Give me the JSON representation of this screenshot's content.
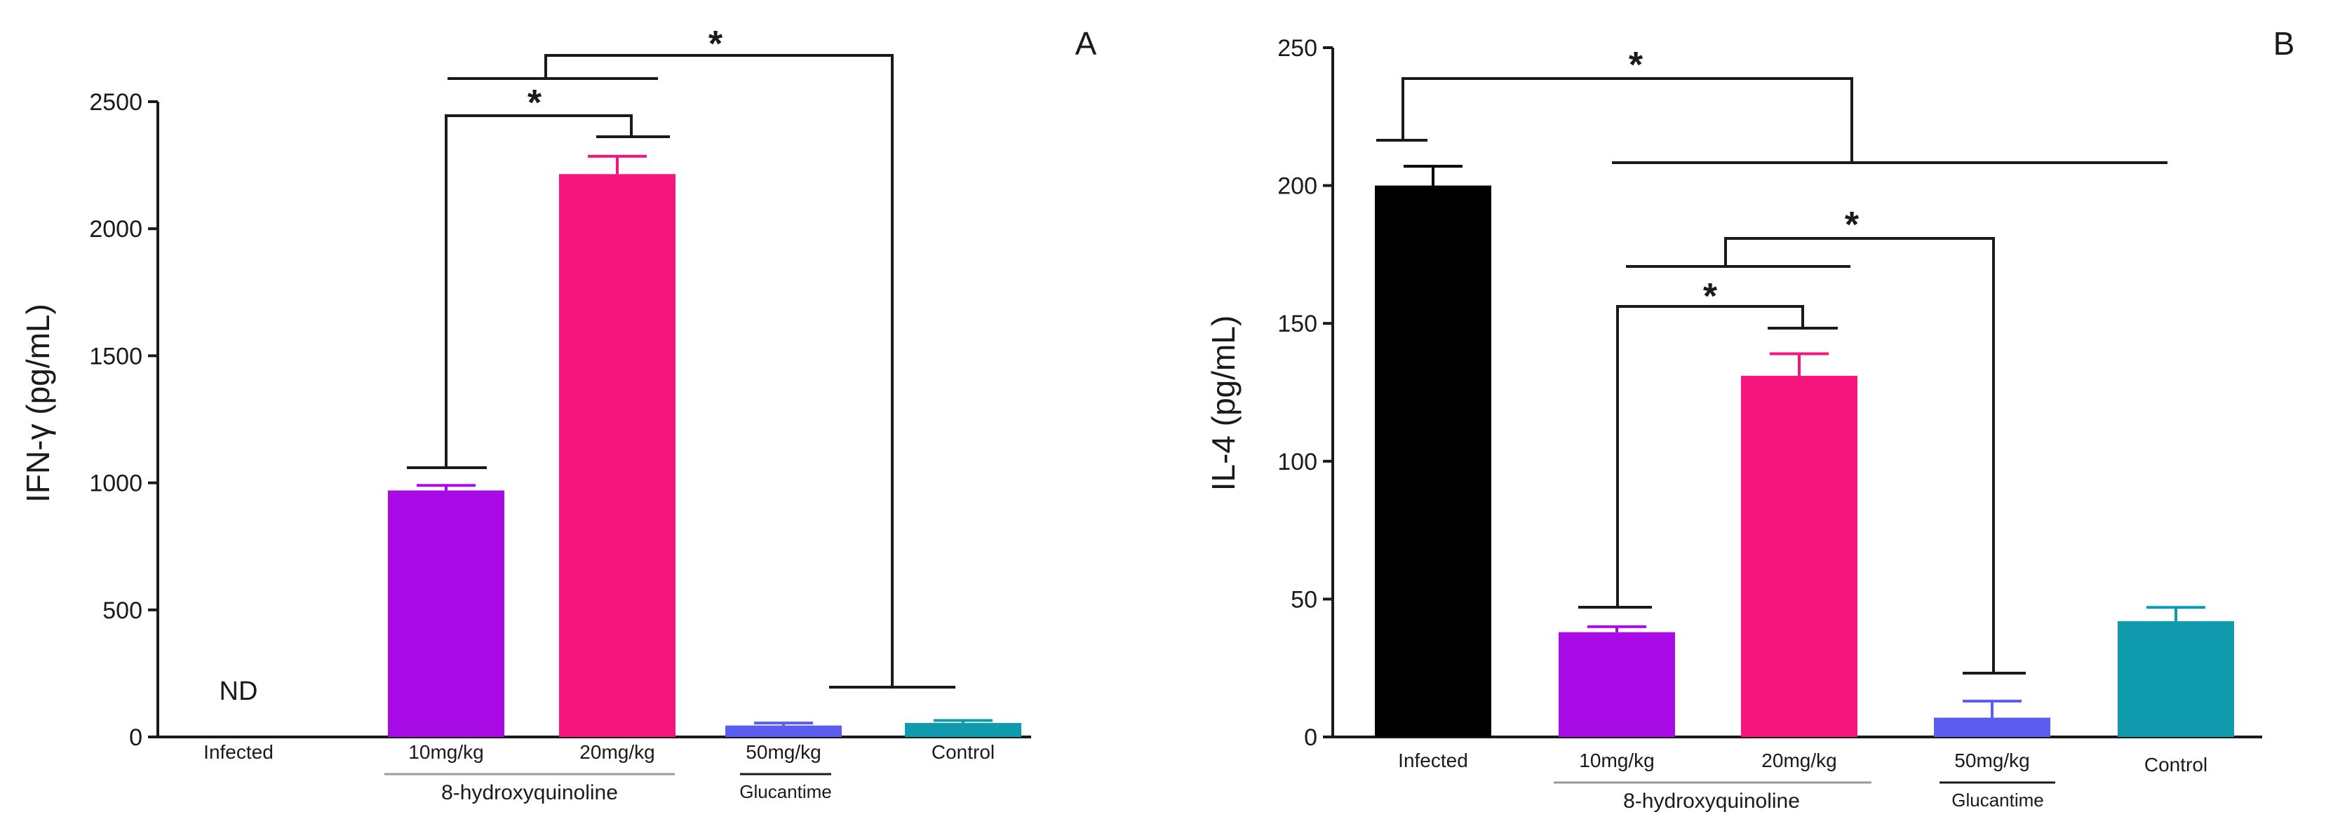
{
  "colors": {
    "infected": "#000000",
    "dose10": "#a80be6",
    "dose20": "#f5157d",
    "glucantime": "#5b5cf0",
    "control": "#0f9aae",
    "axis": "#1a1a1a",
    "group_underline": "#9a9a9a"
  },
  "chart_data": [
    {
      "type": "bar",
      "panel": "A",
      "ylabel": "IFN-γ (pg/mL)",
      "ylim": [
        0,
        2500
      ],
      "yticks": [
        "0",
        "500",
        "1000",
        "1500",
        "2000",
        "2500"
      ],
      "ytick_values": [
        0,
        500,
        1000,
        1500,
        2000,
        2500
      ],
      "categories": [
        "Infected",
        "10mg/kg",
        "20mg/kg",
        "50mg/kg",
        "Control"
      ],
      "values": [
        0,
        970,
        2215,
        45,
        55
      ],
      "errors": [
        0,
        20,
        70,
        10,
        10
      ],
      "nd_label": "ND",
      "group_labels": {
        "hq": "8-hydroxyquinoline",
        "glu": "Glucantime"
      },
      "significance": [
        {
          "from": "10mg/kg",
          "to": "20mg/kg",
          "label": "*"
        },
        {
          "from": "8-hydroxyquinoline",
          "to": "Glucantime/Control",
          "label": "*"
        }
      ]
    },
    {
      "type": "bar",
      "panel": "B",
      "ylabel": "IL-4 (pg/mL)",
      "ylim": [
        0,
        250
      ],
      "yticks": [
        "0",
        "50",
        "100",
        "150",
        "200",
        "250"
      ],
      "ytick_values": [
        0,
        50,
        100,
        150,
        200,
        250
      ],
      "categories": [
        "Infected",
        "10mg/kg",
        "20mg/kg",
        "50mg/kg",
        "Control"
      ],
      "values": [
        200,
        38,
        131,
        7,
        42
      ],
      "errors": [
        7,
        2,
        8,
        6,
        5
      ],
      "group_labels": {
        "hq": "8-hydroxyquinoline",
        "glu": "Glucantime"
      },
      "significance": [
        {
          "from": "Infected",
          "to": "treatments/Control",
          "label": "*"
        },
        {
          "from": "10mg/kg",
          "to": "20mg/kg",
          "label": "*"
        },
        {
          "from": "8-hydroxyquinoline",
          "to": "Glucantime",
          "label": "*"
        }
      ]
    }
  ]
}
